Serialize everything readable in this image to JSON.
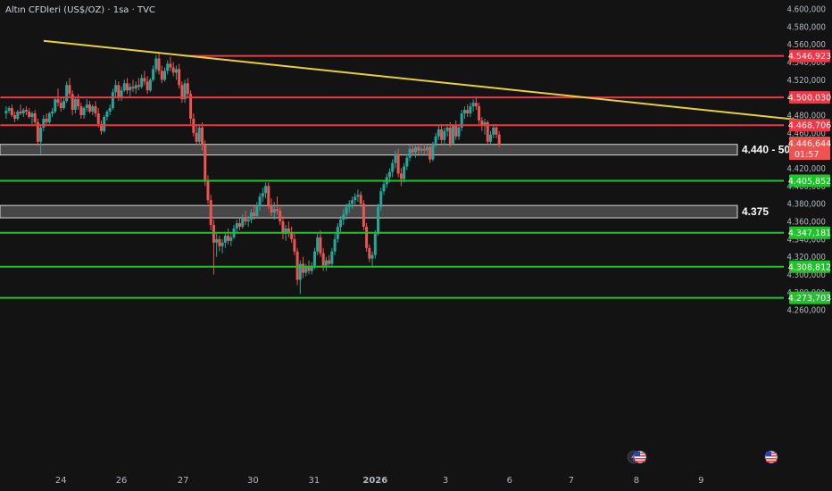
{
  "header": {
    "title": "Altın CFDleri (US$/OZ) · 1sa · TVC"
  },
  "colors": {
    "background": "#131313",
    "bull": "#26a69a",
    "bear": "#ef5350",
    "trendline": "#e8d03c",
    "resistance": "#f23645",
    "support": "#22c32a",
    "zone_fill": "#5a5a5a",
    "axis_text": "#b2b5be"
  },
  "icons": [
    "lightning-event-icon",
    "us-flag-event-icon",
    "us-flag-event-icon-2"
  ],
  "chart_data": {
    "type": "candlestick",
    "y_axis": {
      "min": 4250,
      "max": 4610,
      "ticks": [
        4260,
        4280,
        4300,
        4320,
        4340,
        4360,
        4380,
        4400,
        4420,
        4440,
        4460,
        4480,
        4500,
        4520,
        4540,
        4560,
        4580,
        4600
      ],
      "tick_labels": [
        "4.260,000",
        "4.280,000",
        "4.300,000",
        "4.320,000",
        "4.340,000",
        "4.360,000",
        "4.380,000",
        "4.400,000",
        "4.420,000",
        "4.440,000",
        "4.460,000",
        "4.480,000",
        "4.500,000",
        "4.520,000",
        "4.540,000",
        "4.560,000",
        "4.580,000",
        "4.600,000"
      ]
    },
    "x_axis": {
      "labels": [
        "24",
        "26",
        "27",
        "30",
        "31",
        "2026",
        "3",
        "6",
        "7",
        "8",
        "9"
      ],
      "positions": [
        0.5,
        11.0,
        21.7,
        33.8,
        44.4,
        55.0,
        67.2,
        78.3,
        89.0,
        100.3,
        111.5
      ]
    },
    "resistance_levels": [
      {
        "value": 4546.923,
        "label": "4.546,923",
        "start": 22
      },
      {
        "value": 4500.03,
        "label": "4.500,030",
        "start": -10
      },
      {
        "value": 4468.706,
        "label": "4.468,706",
        "start": -10
      }
    ],
    "support_levels": [
      {
        "value": 4405.852,
        "label": "4.405,852"
      },
      {
        "value": 4347.181,
        "label": "4.347,181"
      },
      {
        "value": 4308.812,
        "label": "4.308,812"
      },
      {
        "value": 4273.703,
        "label": "4.273,703"
      }
    ],
    "zones": [
      {
        "low": 4435,
        "high": 4447,
        "label": "4.440 - 50"
      },
      {
        "low": 4364,
        "high": 4378,
        "label": "4.375"
      }
    ],
    "trendline": {
      "x1": -2.5,
      "y1": 4564,
      "x2": 129.5,
      "y2": 4474
    },
    "last_price": {
      "value": 4446.644,
      "label": "4.446,644",
      "countdown": "01:57"
    },
    "candles": [
      [
        -9.0,
        4482,
        4490,
        4476,
        4485
      ],
      [
        -8.5,
        4485,
        4490,
        4482,
        4488
      ],
      [
        -8.0,
        4488,
        4492,
        4478,
        4480
      ],
      [
        -7.5,
        4480,
        4484,
        4472,
        4476
      ],
      [
        -7.0,
        4476,
        4486,
        4474,
        4484
      ],
      [
        -6.5,
        4484,
        4492,
        4480,
        4482
      ],
      [
        -6.0,
        4482,
        4488,
        4478,
        4486
      ],
      [
        -5.5,
        4486,
        4490,
        4480,
        4484
      ],
      [
        -5.0,
        4484,
        4488,
        4476,
        4478
      ],
      [
        -4.5,
        4478,
        4484,
        4470,
        4482
      ],
      [
        -4.0,
        4482,
        4486,
        4470,
        4472
      ],
      [
        -3.5,
        4472,
        4476,
        4445,
        4450
      ],
      [
        -3.0,
        4450,
        4470,
        4436,
        4466
      ],
      [
        -2.5,
        4466,
        4480,
        4462,
        4476
      ],
      [
        -2.0,
        4476,
        4482,
        4468,
        4472
      ],
      [
        -1.5,
        4472,
        4484,
        4470,
        4482
      ],
      [
        -1.0,
        4482,
        4488,
        4478,
        4484
      ],
      [
        -0.5,
        4484,
        4500,
        4482,
        4498
      ],
      [
        0.0,
        4498,
        4510,
        4490,
        4494
      ],
      [
        0.5,
        4494,
        4500,
        4484,
        4488
      ],
      [
        1.0,
        4488,
        4500,
        4486,
        4496
      ],
      [
        1.5,
        4496,
        4518,
        4494,
        4514
      ],
      [
        2.0,
        4514,
        4522,
        4500,
        4504
      ],
      [
        2.5,
        4504,
        4508,
        4480,
        4486
      ],
      [
        3.0,
        4486,
        4500,
        4482,
        4498
      ],
      [
        3.5,
        4498,
        4504,
        4486,
        4490
      ],
      [
        4.0,
        4490,
        4494,
        4476,
        4480
      ],
      [
        4.5,
        4480,
        4490,
        4476,
        4488
      ],
      [
        5.0,
        4488,
        4498,
        4484,
        4492
      ],
      [
        5.5,
        4492,
        4496,
        4482,
        4484
      ],
      [
        6.0,
        4484,
        4492,
        4480,
        4490
      ],
      [
        6.5,
        4490,
        4496,
        4478,
        4482
      ],
      [
        7.0,
        4482,
        4488,
        4466,
        4470
      ],
      [
        7.5,
        4470,
        4474,
        4458,
        4462
      ],
      [
        8.0,
        4462,
        4480,
        4460,
        4478
      ],
      [
        8.5,
        4478,
        4486,
        4474,
        4484
      ],
      [
        9.0,
        4484,
        4492,
        4480,
        4488
      ],
      [
        9.5,
        4488,
        4510,
        4486,
        4506
      ],
      [
        10.0,
        4506,
        4520,
        4500,
        4514
      ],
      [
        10.5,
        4514,
        4518,
        4496,
        4500
      ],
      [
        11.0,
        4500,
        4512,
        4496,
        4508
      ],
      [
        11.5,
        4508,
        4520,
        4506,
        4516
      ],
      [
        12.0,
        4516,
        4522,
        4504,
        4508
      ],
      [
        12.5,
        4508,
        4516,
        4500,
        4512
      ],
      [
        13.0,
        4512,
        4520,
        4506,
        4510
      ],
      [
        13.5,
        4510,
        4518,
        4504,
        4514
      ],
      [
        14.0,
        4514,
        4522,
        4508,
        4512
      ],
      [
        14.5,
        4512,
        4526,
        4510,
        4522
      ],
      [
        15.0,
        4522,
        4530,
        4514,
        4518
      ],
      [
        15.5,
        4518,
        4524,
        4504,
        4508
      ],
      [
        16.0,
        4508,
        4522,
        4506,
        4520
      ],
      [
        16.5,
        4520,
        4536,
        4518,
        4532
      ],
      [
        17.0,
        4532,
        4548,
        4528,
        4544
      ],
      [
        17.5,
        4544,
        4550,
        4526,
        4530
      ],
      [
        18.0,
        4530,
        4536,
        4516,
        4520
      ],
      [
        18.5,
        4520,
        4534,
        4518,
        4530
      ],
      [
        19.0,
        4530,
        4542,
        4526,
        4538
      ],
      [
        19.5,
        4538,
        4546,
        4530,
        4534
      ],
      [
        20.0,
        4534,
        4540,
        4524,
        4528
      ],
      [
        20.5,
        4528,
        4536,
        4520,
        4532
      ],
      [
        21.0,
        4532,
        4538,
        4510,
        4514
      ],
      [
        21.5,
        4514,
        4518,
        4494,
        4498
      ],
      [
        22.0,
        4498,
        4520,
        4494,
        4516
      ],
      [
        22.5,
        4516,
        4522,
        4500,
        4504
      ],
      [
        23.0,
        4504,
        4508,
        4470,
        4476
      ],
      [
        23.5,
        4476,
        4482,
        4456,
        4460
      ],
      [
        24.0,
        4460,
        4470,
        4446,
        4450
      ],
      [
        24.5,
        4450,
        4470,
        4446,
        4466
      ],
      [
        25.0,
        4466,
        4472,
        4440,
        4446
      ],
      [
        25.5,
        4446,
        4452,
        4400,
        4406
      ],
      [
        26.0,
        4406,
        4412,
        4380,
        4384
      ],
      [
        26.5,
        4384,
        4390,
        4350,
        4356
      ],
      [
        27.0,
        4356,
        4362,
        4300,
        4336
      ],
      [
        27.5,
        4336,
        4346,
        4320,
        4340
      ],
      [
        28.0,
        4340,
        4344,
        4326,
        4332
      ],
      [
        28.5,
        4332,
        4340,
        4324,
        4336
      ],
      [
        29.0,
        4336,
        4348,
        4330,
        4344
      ],
      [
        29.5,
        4344,
        4352,
        4334,
        4338
      ],
      [
        30.0,
        4338,
        4346,
        4332,
        4342
      ],
      [
        30.5,
        4342,
        4356,
        4340,
        4352
      ],
      [
        31.0,
        4352,
        4362,
        4346,
        4358
      ],
      [
        31.5,
        4358,
        4364,
        4350,
        4354
      ],
      [
        32.0,
        4354,
        4368,
        4352,
        4364
      ],
      [
        32.5,
        4364,
        4372,
        4356,
        4360
      ],
      [
        33.0,
        4360,
        4366,
        4354,
        4362
      ],
      [
        33.5,
        4362,
        4374,
        4358,
        4370
      ],
      [
        34.0,
        4370,
        4378,
        4362,
        4366
      ],
      [
        34.5,
        4366,
        4382,
        4364,
        4378
      ],
      [
        35.0,
        4378,
        4392,
        4372,
        4388
      ],
      [
        35.5,
        4388,
        4398,
        4382,
        4392
      ],
      [
        36.0,
        4392,
        4404,
        4386,
        4400
      ],
      [
        36.5,
        4400,
        4404,
        4374,
        4378
      ],
      [
        37.0,
        4378,
        4386,
        4366,
        4370
      ],
      [
        37.5,
        4370,
        4382,
        4362,
        4374
      ],
      [
        38.0,
        4374,
        4388,
        4368,
        4372
      ],
      [
        38.5,
        4372,
        4376,
        4356,
        4360
      ],
      [
        39.0,
        4360,
        4366,
        4340,
        4346
      ],
      [
        39.5,
        4346,
        4356,
        4338,
        4352
      ],
      [
        40.0,
        4352,
        4360,
        4342,
        4348
      ],
      [
        40.5,
        4348,
        4354,
        4336,
        4340
      ],
      [
        41.0,
        4340,
        4346,
        4322,
        4326
      ],
      [
        41.5,
        4326,
        4330,
        4288,
        4294
      ],
      [
        42.0,
        4294,
        4316,
        4278,
        4312
      ],
      [
        42.5,
        4312,
        4320,
        4296,
        4302
      ],
      [
        43.0,
        4302,
        4312,
        4298,
        4308
      ],
      [
        43.5,
        4308,
        4316,
        4300,
        4304
      ],
      [
        44.0,
        4304,
        4314,
        4300,
        4310
      ],
      [
        44.5,
        4310,
        4330,
        4306,
        4326
      ],
      [
        45.0,
        4326,
        4346,
        4322,
        4342
      ],
      [
        45.5,
        4342,
        4350,
        4320,
        4324
      ],
      [
        46.0,
        4324,
        4330,
        4304,
        4310
      ],
      [
        46.5,
        4310,
        4320,
        4304,
        4316
      ],
      [
        47.0,
        4316,
        4322,
        4308,
        4312
      ],
      [
        47.5,
        4312,
        4330,
        4308,
        4326
      ],
      [
        48.0,
        4326,
        4346,
        4322,
        4340
      ],
      [
        48.5,
        4340,
        4358,
        4336,
        4354
      ],
      [
        49.0,
        4354,
        4366,
        4348,
        4362
      ],
      [
        49.5,
        4362,
        4374,
        4356,
        4368
      ],
      [
        50.0,
        4368,
        4380,
        4362,
        4376
      ],
      [
        50.5,
        4376,
        4384,
        4370,
        4380
      ],
      [
        51.0,
        4380,
        4388,
        4374,
        4384
      ],
      [
        51.5,
        4384,
        4392,
        4378,
        4388
      ],
      [
        52.0,
        4388,
        4396,
        4382,
        4390
      ],
      [
        52.5,
        4390,
        4394,
        4376,
        4380
      ],
      [
        53.0,
        4380,
        4384,
        4350,
        4354
      ],
      [
        53.5,
        4354,
        4358,
        4326,
        4330
      ],
      [
        54.0,
        4330,
        4334,
        4314,
        4318
      ],
      [
        54.5,
        4318,
        4326,
        4310,
        4322
      ],
      [
        55.0,
        4322,
        4350,
        4318,
        4346
      ],
      [
        55.5,
        4346,
        4380,
        4344,
        4376
      ],
      [
        56.0,
        4376,
        4398,
        4372,
        4394
      ],
      [
        56.5,
        4394,
        4406,
        4390,
        4402
      ],
      [
        57.0,
        4402,
        4414,
        4398,
        4410
      ],
      [
        57.5,
        4410,
        4420,
        4404,
        4416
      ],
      [
        58.0,
        4416,
        4430,
        4410,
        4426
      ],
      [
        58.5,
        4426,
        4440,
        4420,
        4436
      ],
      [
        59.0,
        4436,
        4442,
        4410,
        4414
      ],
      [
        59.5,
        4414,
        4420,
        4400,
        4408
      ],
      [
        60.0,
        4408,
        4426,
        4404,
        4422
      ],
      [
        60.5,
        4422,
        4436,
        4418,
        4432
      ],
      [
        61.0,
        4432,
        4446,
        4428,
        4442
      ],
      [
        61.5,
        4442,
        4448,
        4434,
        4438
      ],
      [
        62.0,
        4438,
        4446,
        4432,
        4444
      ],
      [
        62.5,
        4444,
        4448,
        4436,
        4440
      ],
      [
        63.0,
        4440,
        4446,
        4434,
        4442
      ],
      [
        63.5,
        4442,
        4448,
        4436,
        4440
      ],
      [
        64.0,
        4440,
        4446,
        4434,
        4444
      ],
      [
        64.5,
        4444,
        4448,
        4426,
        4430
      ],
      [
        65.0,
        4430,
        4450,
        4428,
        4448
      ],
      [
        65.5,
        4448,
        4460,
        4444,
        4456
      ],
      [
        66.0,
        4456,
        4468,
        4452,
        4464
      ],
      [
        66.5,
        4464,
        4470,
        4448,
        4452
      ],
      [
        67.0,
        4452,
        4466,
        4446,
        4462
      ],
      [
        67.5,
        4462,
        4470,
        4456,
        4466
      ],
      [
        68.0,
        4466,
        4472,
        4444,
        4448
      ],
      [
        68.5,
        4448,
        4470,
        4446,
        4468
      ],
      [
        69.0,
        4468,
        4474,
        4452,
        4456
      ],
      [
        69.5,
        4456,
        4470,
        4452,
        4466
      ],
      [
        70.0,
        4466,
        4486,
        4462,
        4482
      ],
      [
        70.5,
        4482,
        4490,
        4476,
        4486
      ],
      [
        71.0,
        4486,
        4492,
        4478,
        4482
      ],
      [
        71.5,
        4482,
        4494,
        4478,
        4490
      ],
      [
        72.0,
        4490,
        4498,
        4484,
        4494
      ],
      [
        72.5,
        4494,
        4500,
        4486,
        4490
      ],
      [
        73.0,
        4490,
        4494,
        4470,
        4474
      ],
      [
        73.5,
        4474,
        4478,
        4462,
        4468
      ],
      [
        74.0,
        4468,
        4476,
        4458,
        4472
      ],
      [
        74.5,
        4472,
        4474,
        4446,
        4450
      ],
      [
        75.0,
        4450,
        4462,
        4446,
        4458
      ],
      [
        75.5,
        4458,
        4470,
        4454,
        4466
      ],
      [
        76.0,
        4466,
        4470,
        4454,
        4458
      ],
      [
        76.5,
        4458,
        4462,
        4444,
        4446
      ]
    ]
  }
}
